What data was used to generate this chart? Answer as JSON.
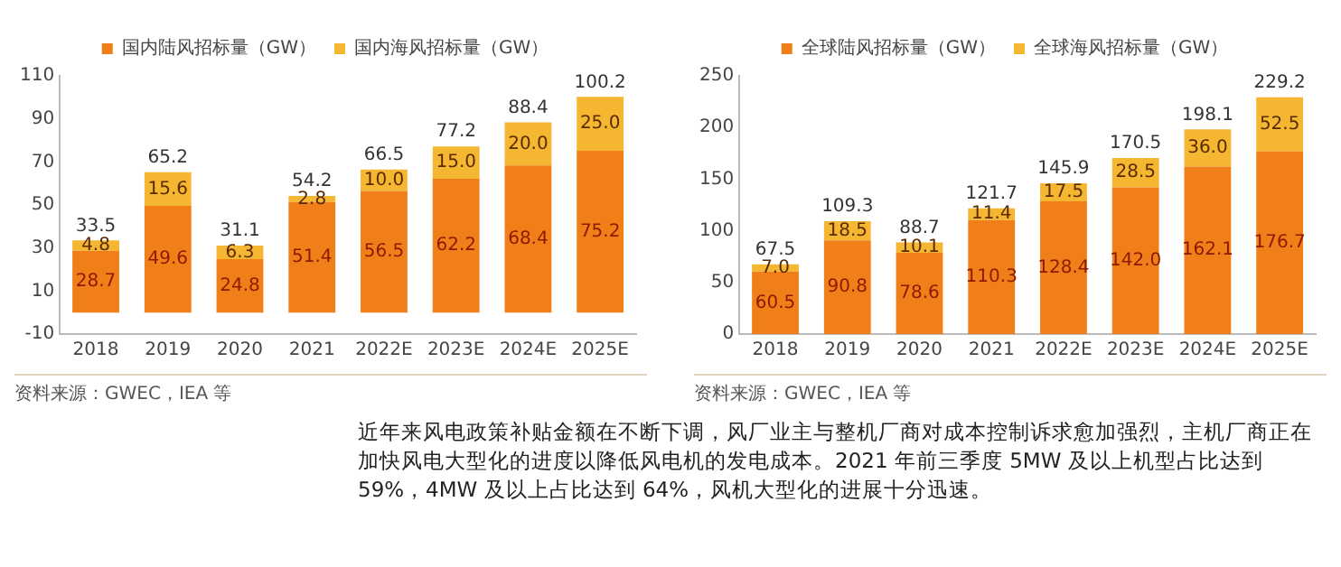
{
  "chart_data": [
    {
      "type": "bar",
      "stacked": true,
      "categories": [
        "2018",
        "2019",
        "2020",
        "2021",
        "2022E",
        "2023E",
        "2024E",
        "2025E"
      ],
      "ylim": [
        -10,
        110
      ],
      "yticks": [
        -10,
        10,
        30,
        50,
        70,
        90,
        110
      ],
      "grid": false,
      "legend": "top",
      "series": [
        {
          "name": "国内陆风招标量（GW）",
          "color": "#f07f1a",
          "values": [
            28.7,
            49.6,
            24.8,
            51.4,
            56.5,
            62.2,
            68.4,
            75.2
          ],
          "value_labels": [
            "28.7",
            "49.6",
            "24.8",
            "51.4",
            "56.5",
            "62.2",
            "68.4",
            "75.2"
          ]
        },
        {
          "name": "国内海风招标量（GW）",
          "color": "#f5b731",
          "values": [
            4.8,
            15.6,
            6.3,
            2.8,
            10.0,
            15.0,
            20.0,
            25.0
          ],
          "value_labels": [
            "4.8",
            "15.6",
            "6.3",
            "2.8",
            "10.0",
            "15.0",
            "20.0",
            "25.0"
          ]
        }
      ],
      "totals": [
        "33.5",
        "65.2",
        "31.1",
        "54.2",
        "66.5",
        "77.2",
        "88.4",
        "100.2"
      ],
      "annotations": [
        "资料来源：GWEC，IEA 等"
      ]
    },
    {
      "type": "bar",
      "stacked": true,
      "categories": [
        "2018",
        "2019",
        "2020",
        "2021",
        "2022E",
        "2023E",
        "2024E",
        "2025E"
      ],
      "ylim": [
        0,
        250
      ],
      "yticks": [
        0,
        50,
        100,
        150,
        200,
        250
      ],
      "grid": false,
      "legend": "top",
      "series": [
        {
          "name": "全球陆风招标量（GW）",
          "color": "#f07f1a",
          "values": [
            60.5,
            90.8,
            78.6,
            110.3,
            128.4,
            142.0,
            162.1,
            176.7
          ],
          "value_labels": [
            "60.5",
            "90.8",
            "78.6",
            "110.3",
            "128.4",
            "142.0",
            "162.1",
            "176.7"
          ]
        },
        {
          "name": "全球海风招标量（GW）",
          "color": "#f5b731",
          "values": [
            7.0,
            18.5,
            10.1,
            11.4,
            17.5,
            28.5,
            36.0,
            52.5
          ],
          "value_labels": [
            "7.0",
            "18.5",
            "10.1",
            "11.4",
            "17.5",
            "28.5",
            "36.0",
            "52.5"
          ]
        }
      ],
      "totals": [
        "67.5",
        "109.3",
        "88.7",
        "121.7",
        "145.9",
        "170.5",
        "198.1",
        "229.2"
      ],
      "annotations": [
        "资料来源：GWEC，IEA 等",
        "近年来风电政策补贴金额在不断下调，风厂业主与整机厂商对成本控制诉求愈加强烈，主机厂商正在加快风电大型化的进度以降低风电机的发电成本。2021 年前三季度 5MW 及以上机型占比达到 59%，4MW 及以上占比达到 64%，风机大型化的进展十分迅速。"
      ]
    }
  ]
}
